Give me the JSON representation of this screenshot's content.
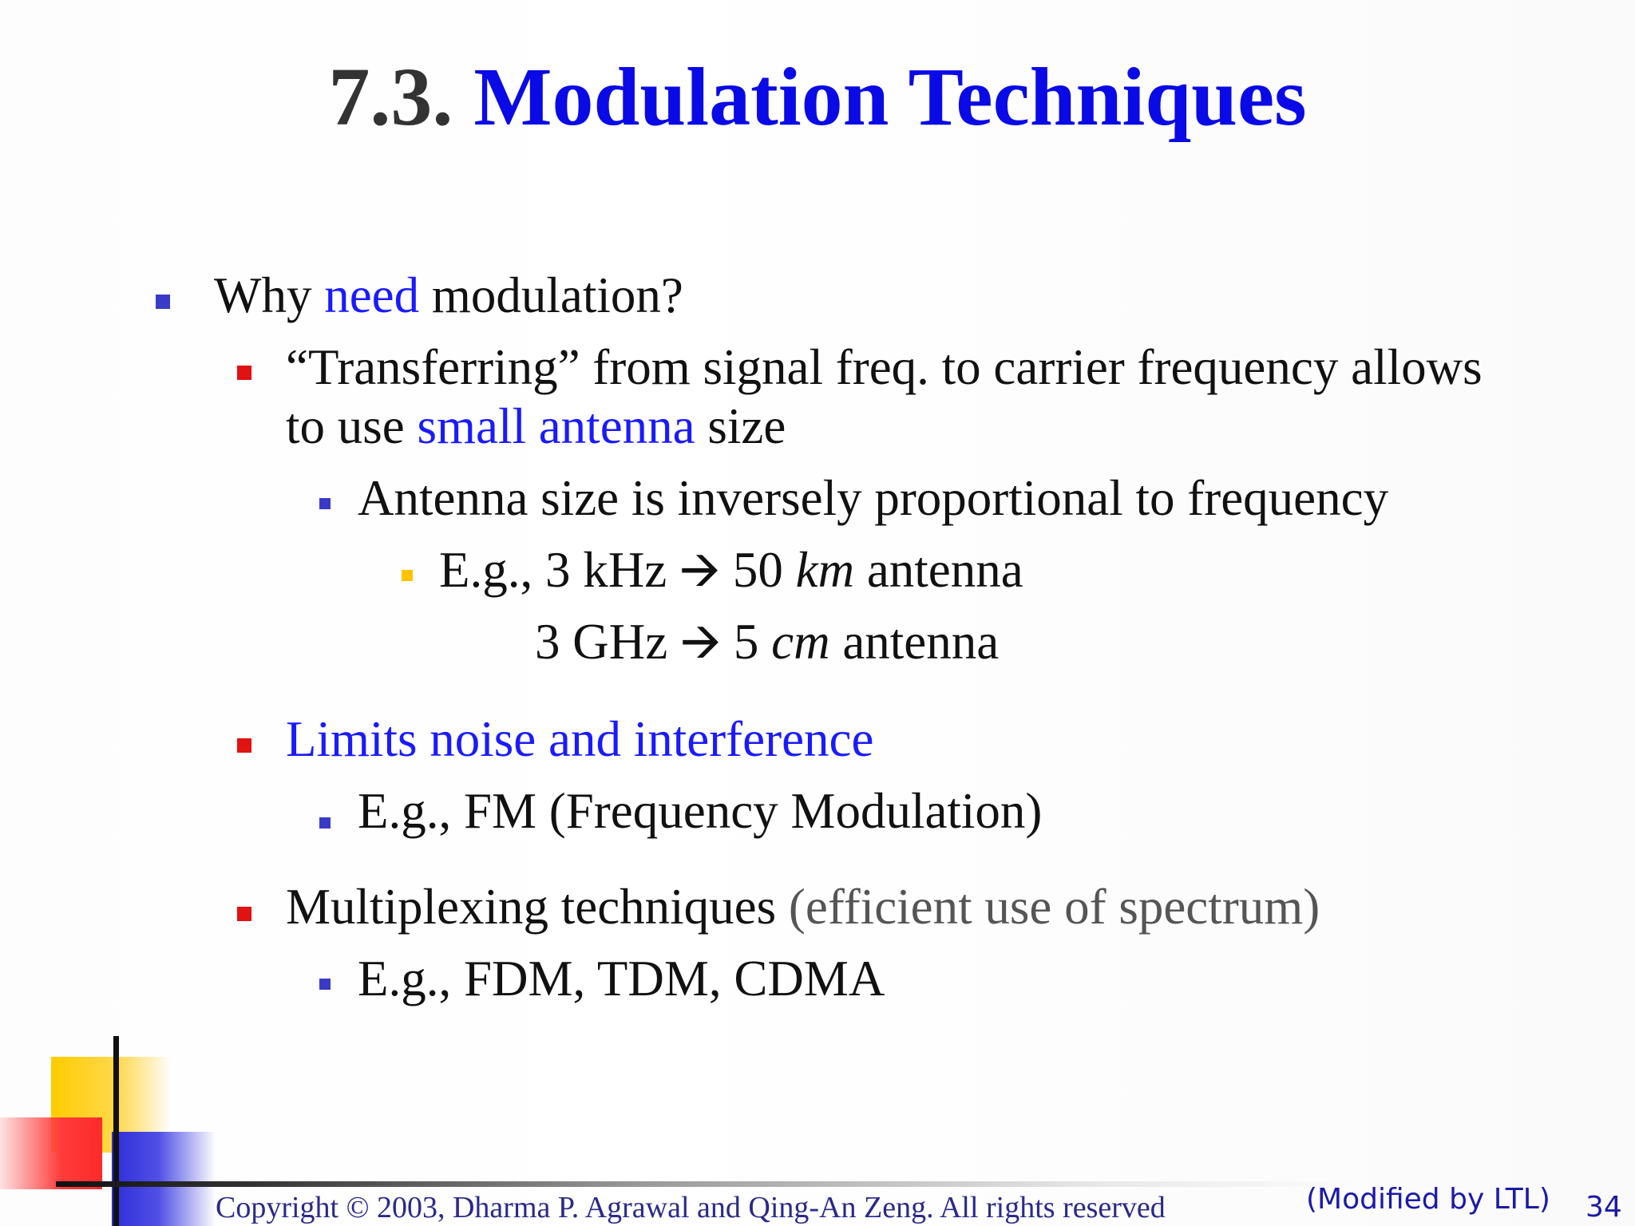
{
  "slide": {
    "title_number": "7.3.",
    "title_text": "Modulation Techniques",
    "bullets": {
      "l1": {
        "pre": "Why ",
        "highlight": "need",
        "post": " modulation?"
      },
      "l2a": {
        "line1": "“Transferring” from signal freq. to carrier frequency allows",
        "line2_pre": "to use ",
        "line2_highlight": "small antenna",
        "line2_post": " size"
      },
      "l3a": "Antenna size is inversely proportional to frequency",
      "l4a": {
        "pre": "E.g., 3 kHz ",
        "arrow": "🡪",
        "mid": "  50 ",
        "unit": "km",
        "post": " antenna"
      },
      "l4b": {
        "pre": "3 GHz ",
        "arrow": "🡪",
        "mid": "  5 ",
        "unit": "cm",
        "post": " antenna"
      },
      "l2b": "Limits noise and interference",
      "l3b": "E.g., FM (Frequency Modulation)",
      "l2c": {
        "pre": "Multiplexing techniques ",
        "gray": "(efficient use of spectrum)"
      },
      "l3c": "E.g., FDM, TDM, CDMA"
    },
    "footer": {
      "copyright": "Copyright © 2003, Dharma P. Agrawal and Qing-An Zeng. All rights reserved",
      "modified": "(Modified by LTL)",
      "page_number": "34"
    },
    "colors": {
      "title_accent": "#0a0ae6",
      "highlight": "#1a1aff",
      "bullet_l1": "#3a3ac8",
      "bullet_l2": "#e01212",
      "bullet_l4": "#ffc300",
      "deco_yellow": "#ffcc00",
      "deco_red": "#ff3333",
      "deco_blue": "#3333dd"
    }
  }
}
